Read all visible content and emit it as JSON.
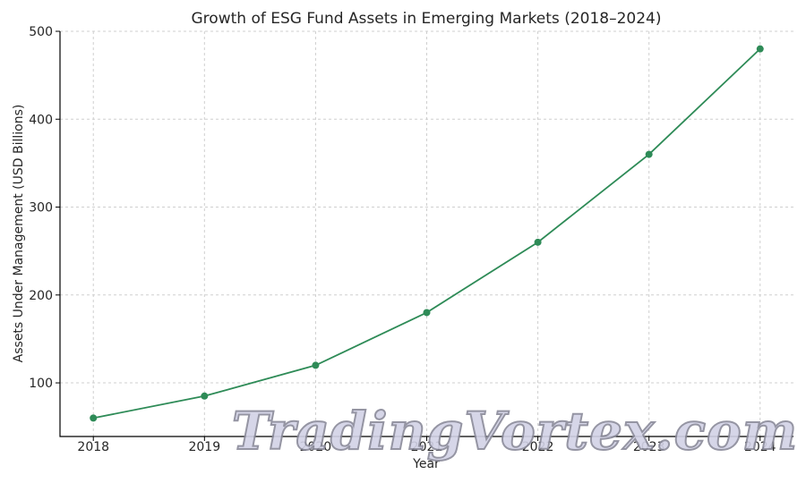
{
  "chart_data": {
    "type": "line",
    "title": "Growth of ESG Fund Assets in Emerging Markets (2018–2024)",
    "xlabel": "Year",
    "ylabel": "Assets Under Management (USD Billions)",
    "x": [
      2018,
      2019,
      2020,
      2021,
      2022,
      2023,
      2024
    ],
    "series": [
      {
        "values": [
          60,
          85,
          120,
          180,
          260,
          360,
          480
        ],
        "color": "#2e8b57"
      }
    ],
    "ylim": [
      39,
      500
    ],
    "yticks": [
      100,
      200,
      300,
      400,
      500
    ],
    "xlim": [
      2017.7,
      2024.3
    ],
    "grid": true
  },
  "watermark": "TradingVortex.com"
}
